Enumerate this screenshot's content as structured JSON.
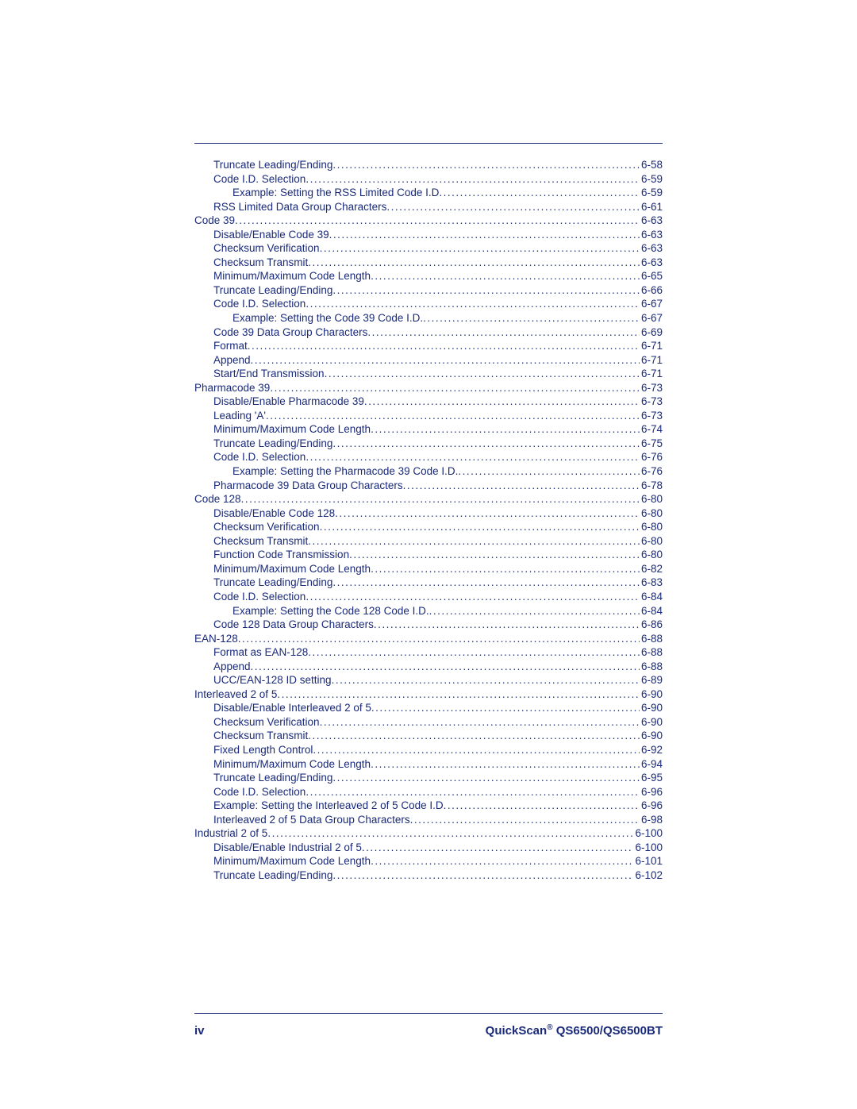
{
  "colors": {
    "text": "#1a2a7a",
    "rule": "#1a2a7a",
    "background": "#ffffff"
  },
  "typography": {
    "body_font": "Verdana, Geneva, sans-serif",
    "body_size_pt": 10,
    "footer_size_pt": 11,
    "footer_weight": "bold"
  },
  "footer": {
    "page_label": "iv",
    "product_prefix": "QuickScan",
    "product_reg": "®",
    "product_suffix": " QS6500/QS6500BT"
  },
  "toc": {
    "entries": [
      {
        "indent": 1,
        "label": "Truncate Leading/Ending ",
        "page": "6-58"
      },
      {
        "indent": 1,
        "label": "Code I.D. Selection ",
        "page": "6-59"
      },
      {
        "indent": 2,
        "label": "Example: Setting the RSS Limited Code I.D",
        "page": "6-59"
      },
      {
        "indent": 1,
        "label": "RSS Limited Data Group Characters ",
        "page": "6-61"
      },
      {
        "indent": 0,
        "label": "Code 39 ",
        "page": "6-63"
      },
      {
        "indent": 1,
        "label": "Disable/Enable Code 39 ",
        "page": "6-63"
      },
      {
        "indent": 1,
        "label": "Checksum Verification ",
        "page": "6-63"
      },
      {
        "indent": 1,
        "label": "Checksum Transmit ",
        "page": "6-63"
      },
      {
        "indent": 1,
        "label": "Minimum/Maximum Code Length ",
        "page": "6-65"
      },
      {
        "indent": 1,
        "label": "Truncate Leading/Ending ",
        "page": "6-66"
      },
      {
        "indent": 1,
        "label": "Code I.D. Selection ",
        "page": "6-67"
      },
      {
        "indent": 2,
        "label": "Example: Setting the Code 39 Code I.D. ",
        "page": "6-67"
      },
      {
        "indent": 1,
        "label": "Code 39 Data Group Characters ",
        "page": "6-69"
      },
      {
        "indent": 1,
        "label": "Format ",
        "page": "6-71"
      },
      {
        "indent": 1,
        "label": "Append ",
        "page": "6-71"
      },
      {
        "indent": 1,
        "label": "Start/End Transmission ",
        "page": "6-71"
      },
      {
        "indent": 0,
        "label": "Pharmacode 39 ",
        "page": "6-73"
      },
      {
        "indent": 1,
        "label": "Disable/Enable Pharmacode 39 ",
        "page": "6-73"
      },
      {
        "indent": 1,
        "label": "Leading 'A' ",
        "page": "6-73"
      },
      {
        "indent": 1,
        "label": "Minimum/Maximum Code Length ",
        "page": "6-74"
      },
      {
        "indent": 1,
        "label": "Truncate Leading/Ending ",
        "page": "6-75"
      },
      {
        "indent": 1,
        "label": "Code I.D. Selection ",
        "page": "6-76"
      },
      {
        "indent": 2,
        "label": "Example: Setting the Pharmacode 39 Code I.D. ",
        "page": "6-76"
      },
      {
        "indent": 1,
        "label": "Pharmacode 39 Data Group Characters ",
        "page": "6-78"
      },
      {
        "indent": 0,
        "label": "Code 128 ",
        "page": "6-80"
      },
      {
        "indent": 1,
        "label": "Disable/Enable Code 128 ",
        "page": "6-80"
      },
      {
        "indent": 1,
        "label": "Checksum Verification ",
        "page": "6-80"
      },
      {
        "indent": 1,
        "label": "Checksum Transmit ",
        "page": "6-80"
      },
      {
        "indent": 1,
        "label": "Function Code Transmission ",
        "page": "6-80"
      },
      {
        "indent": 1,
        "label": "Minimum/Maximum Code Length ",
        "page": "6-82"
      },
      {
        "indent": 1,
        "label": "Truncate Leading/Ending ",
        "page": "6-83"
      },
      {
        "indent": 1,
        "label": "Code I.D. Selection ",
        "page": "6-84"
      },
      {
        "indent": 2,
        "label": "Example: Setting the Code 128 Code I.D. ",
        "page": "6-84"
      },
      {
        "indent": 1,
        "label": "Code 128 Data Group Characters ",
        "page": "6-86"
      },
      {
        "indent": 0,
        "label": "EAN-128 ",
        "page": "6-88"
      },
      {
        "indent": 1,
        "label": "Format as EAN-128 ",
        "page": "6-88"
      },
      {
        "indent": 1,
        "label": "Append ",
        "page": "6-88"
      },
      {
        "indent": 1,
        "label": "UCC/EAN-128 ID setting ",
        "page": "6-89"
      },
      {
        "indent": 0,
        "label": "Interleaved 2 of 5 ",
        "page": "6-90"
      },
      {
        "indent": 1,
        "label": "Disable/Enable Interleaved 2 of 5 ",
        "page": "6-90"
      },
      {
        "indent": 1,
        "label": "Checksum Verification ",
        "page": "6-90"
      },
      {
        "indent": 1,
        "label": "Checksum Transmit ",
        "page": "6-90"
      },
      {
        "indent": 1,
        "label": "Fixed Length Control ",
        "page": "6-92"
      },
      {
        "indent": 1,
        "label": "Minimum/Maximum Code Length ",
        "page": "6-94"
      },
      {
        "indent": 1,
        "label": "Truncate Leading/Ending ",
        "page": "6-95"
      },
      {
        "indent": 1,
        "label": "Code I.D. Selection ",
        "page": "6-96"
      },
      {
        "indent": 1,
        "label": "Example: Setting the Interleaved 2 of 5 Code I.D",
        "page": "6-96"
      },
      {
        "indent": 1,
        "label": "Interleaved 2 of 5 Data Group Characters ",
        "page": "6-98"
      },
      {
        "indent": 0,
        "label": "Industrial 2 of 5 ",
        "page": "6-100"
      },
      {
        "indent": 1,
        "label": "Disable/Enable Industrial 2 of 5 ",
        "page": "6-100"
      },
      {
        "indent": 1,
        "label": "Minimum/Maximum Code Length ",
        "page": "6-101"
      },
      {
        "indent": 1,
        "label": "Truncate Leading/Ending ",
        "page": "6-102"
      }
    ]
  }
}
